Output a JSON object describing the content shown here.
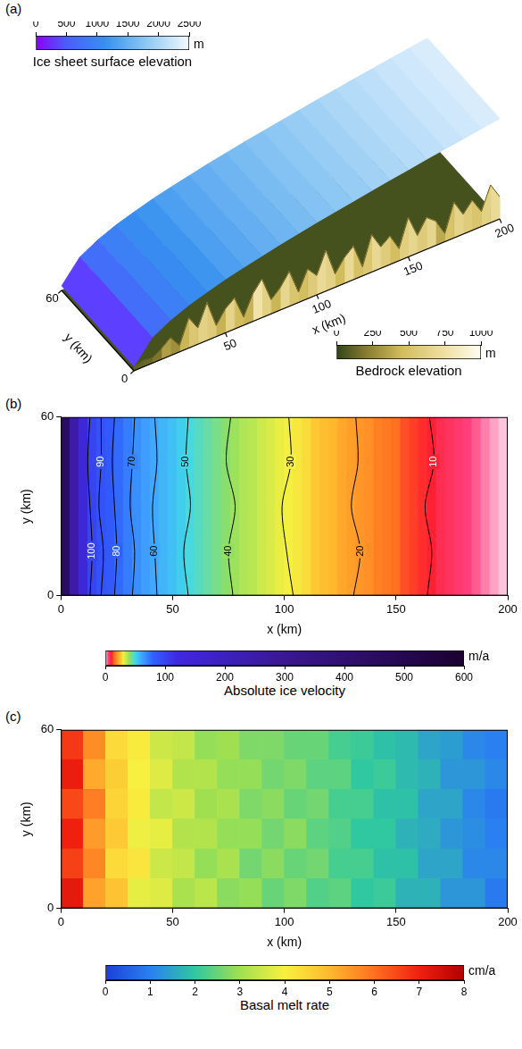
{
  "chart_data": [
    {
      "panel": "(a)",
      "type": "surface3d",
      "xlabel": "x (km)",
      "ylabel": "y (km)",
      "xlim": [
        0,
        200
      ],
      "ylim": [
        0,
        60
      ],
      "xticks": [
        50,
        100,
        150,
        200
      ],
      "yticks": [
        0,
        60
      ],
      "surface": {
        "x": [
          0,
          10,
          20,
          30,
          40,
          50,
          60,
          70,
          80,
          90,
          100,
          110,
          120,
          130,
          140,
          150,
          160,
          170,
          180,
          190,
          200
        ],
        "values": [
          100,
          600,
          830,
          1000,
          1130,
          1250,
          1350,
          1440,
          1530,
          1610,
          1690,
          1760,
          1830,
          1900,
          1970,
          2030,
          2100,
          2160,
          2220,
          2280,
          2340
        ],
        "colorbar": {
          "title": "Ice sheet surface elevation",
          "unit": "m",
          "range": [
            0,
            2500
          ],
          "ticks": [
            0,
            500,
            1000,
            1500,
            2000,
            2500
          ]
        }
      },
      "bedrock": {
        "x": [
          0,
          5,
          10,
          15,
          20,
          25,
          30,
          35,
          40,
          45,
          50,
          55,
          60,
          65,
          70,
          75,
          80,
          85,
          90,
          95,
          100,
          105,
          110,
          115,
          120,
          125,
          130,
          135,
          140,
          145,
          150,
          155,
          160,
          165,
          170,
          175,
          180,
          185,
          190,
          195,
          200
        ],
        "values": [
          80,
          150,
          120,
          250,
          420,
          150,
          700,
          380,
          880,
          260,
          560,
          720,
          190,
          640,
          900,
          330,
          520,
          810,
          240,
          690,
          450,
          950,
          310,
          600,
          780,
          210,
          870,
          500,
          660,
          280,
          920,
          410,
          740,
          570,
          190,
          830,
          460,
          700,
          350,
          880,
          520
        ],
        "colorbar": {
          "title": "Bedrock elevation",
          "unit": "m",
          "range": [
            0,
            1000
          ],
          "ticks": [
            0,
            250,
            500,
            750,
            1000
          ]
        }
      }
    },
    {
      "panel": "(b)",
      "type": "heatmap",
      "xlabel": "x (km)",
      "ylabel": "y (km)",
      "xlim": [
        0,
        200
      ],
      "ylim": [
        0,
        60
      ],
      "xticks": [
        0,
        50,
        100,
        150,
        200
      ],
      "yticks": [
        0,
        60
      ],
      "cells": {
        "x": [
          2,
          6,
          10,
          14,
          18,
          22,
          26,
          30,
          34,
          38,
          42,
          46,
          50,
          54,
          58,
          62,
          66,
          70,
          74,
          78,
          82,
          86,
          90,
          94,
          98,
          102,
          106,
          110,
          114,
          118,
          122,
          126,
          130,
          134,
          138,
          142,
          146,
          150,
          154,
          158,
          162,
          166,
          170,
          174,
          178,
          182,
          186,
          190,
          194,
          198
        ],
        "values": [
          450,
          250,
          140,
          100,
          90,
          85,
          77,
          72,
          67,
          63,
          60,
          57,
          55,
          52,
          49,
          47,
          45,
          43,
          41,
          39,
          37,
          36,
          34,
          33,
          31,
          30,
          29,
          28,
          26,
          25,
          24,
          22,
          21,
          20,
          19,
          17,
          16,
          15,
          13,
          12,
          11,
          10,
          8,
          7,
          6,
          5,
          4,
          3,
          2,
          1
        ]
      },
      "contours": {
        "y": [
          0,
          15,
          30,
          45,
          60
        ],
        "lines": [
          {
            "level": 10,
            "x": [
              164,
              166,
              163,
              167,
              165
            ]
          },
          {
            "level": 20,
            "x": [
              131,
              134,
              130,
              133,
              132
            ]
          },
          {
            "level": 30,
            "x": [
              104,
              101,
              99,
              103,
              102
            ]
          },
          {
            "level": 40,
            "x": [
              77,
              75,
              78,
              74,
              76
            ]
          },
          {
            "level": 50,
            "x": [
              57,
              55,
              58,
              56,
              57
            ]
          },
          {
            "level": 60,
            "x": [
              43,
              42,
              41,
              43,
              42
            ]
          },
          {
            "level": 70,
            "x": [
              32,
              33,
              31,
              32,
              33
            ]
          },
          {
            "level": 80,
            "x": [
              24,
              25,
              24,
              23,
              24
            ]
          },
          {
            "level": 90,
            "x": [
              18,
              19,
              17,
              18,
              18
            ]
          },
          {
            "level": 100,
            "x": [
              13,
              14,
              13,
              12,
              13
            ]
          }
        ]
      },
      "colorbar": {
        "title": "Absolute ice velocity",
        "unit": "m/a",
        "range": [
          0,
          600
        ],
        "ticks": [
          0,
          100,
          200,
          300,
          400,
          500,
          600
        ]
      }
    },
    {
      "panel": "(c)",
      "type": "heatmap",
      "xlabel": "x (km)",
      "ylabel": "y (km)",
      "xlim": [
        0,
        200
      ],
      "ylim": [
        0,
        60
      ],
      "xticks": [
        0,
        50,
        100,
        150,
        200
      ],
      "yticks": [
        0,
        60
      ],
      "cells": {
        "x": [
          5,
          15,
          25,
          35,
          45,
          55,
          65,
          75,
          85,
          95,
          105,
          115,
          125,
          135,
          145,
          155,
          165,
          175,
          185,
          195
        ],
        "y": [
          5,
          15,
          25,
          35,
          45,
          55
        ],
        "values": [
          [
            7.2,
            5.3,
            4.8,
            3.8,
            3.7,
            3.1,
            3.3,
            2.8,
            2.9,
            2.5,
            2.7,
            2.3,
            2.4,
            2.0,
            2.1,
            1.7,
            1.7,
            1.3,
            1.3,
            0.9
          ],
          [
            6.6,
            5.7,
            4.4,
            4.2,
            3.5,
            3.4,
            2.9,
            3.1,
            2.6,
            2.8,
            2.5,
            2.6,
            2.2,
            2.2,
            1.9,
            1.9,
            1.5,
            1.5,
            1.1,
            1.1
          ],
          [
            7.0,
            5.4,
            4.7,
            3.9,
            3.8,
            3.2,
            3.2,
            2.9,
            2.9,
            2.6,
            2.8,
            2.4,
            2.3,
            2.0,
            2.0,
            1.7,
            1.6,
            1.3,
            1.2,
            1.0
          ],
          [
            6.5,
            5.8,
            4.5,
            4.1,
            3.4,
            3.5,
            3.0,
            3.1,
            2.7,
            2.8,
            2.5,
            2.6,
            2.2,
            2.2,
            1.9,
            1.9,
            1.5,
            1.5,
            1.1,
            0.9
          ],
          [
            7.1,
            5.2,
            4.6,
            4.0,
            3.7,
            3.2,
            3.2,
            2.9,
            2.9,
            2.6,
            2.7,
            2.4,
            2.4,
            2.0,
            2.1,
            1.8,
            1.7,
            1.3,
            1.3,
            1.1
          ],
          [
            6.7,
            5.6,
            4.4,
            4.1,
            3.5,
            3.4,
            2.9,
            3.0,
            2.7,
            2.7,
            2.5,
            2.5,
            2.2,
            2.1,
            1.9,
            1.8,
            1.5,
            1.4,
            1.1,
            1.0
          ]
        ]
      },
      "colorbar": {
        "title": "Basal melt rate",
        "unit": "cm/a",
        "range": [
          0,
          8
        ],
        "ticks": [
          0,
          1,
          2,
          3,
          4,
          5,
          6,
          7,
          8
        ]
      }
    }
  ]
}
